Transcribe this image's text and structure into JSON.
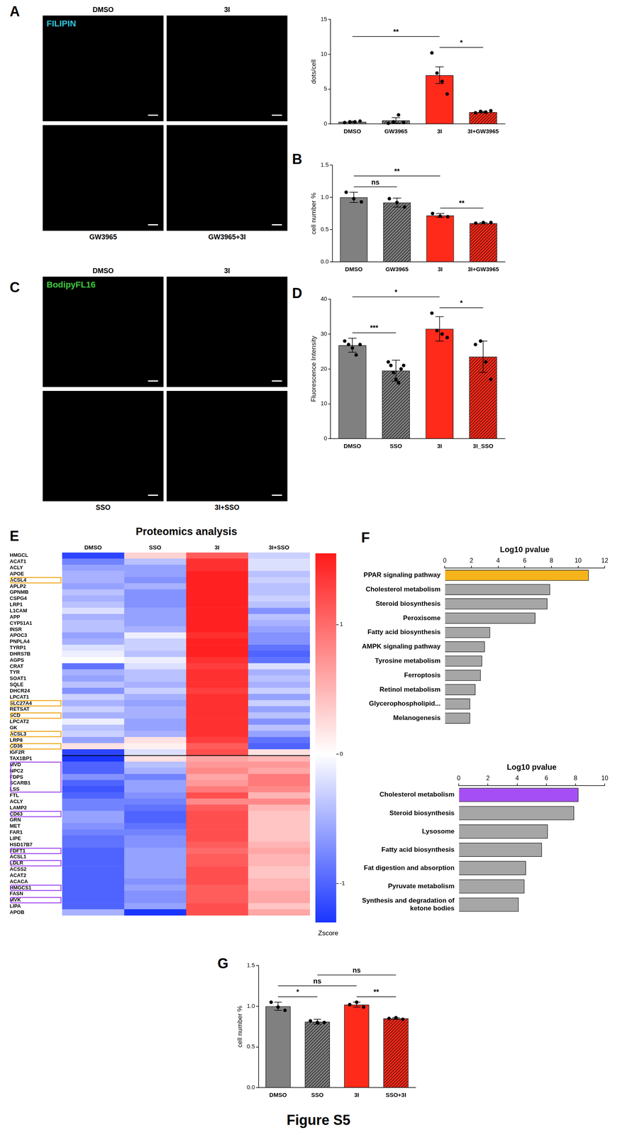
{
  "title": "Figure S5",
  "image_panels": [
    {
      "panel": "A",
      "stain": "FILIPIN",
      "color": "#2fc4dc",
      "labels_top": [
        "DMSO",
        "3I"
      ],
      "labels_bottom": [
        "GW3965",
        "GW3965+3I"
      ]
    },
    {
      "panel": "C",
      "stain": "BodipyFL16",
      "color": "#3cc83c",
      "labels_top": [
        "DMSO",
        "3I"
      ],
      "labels_bottom": [
        "SSO",
        "3I+SSO"
      ]
    }
  ],
  "chart_data": [
    {
      "type": "bar",
      "panel": "A",
      "y_label": "dots/cell",
      "categories": [
        "DMSO",
        "GW3965",
        "3I",
        "3I+GW3965"
      ],
      "values": [
        0.3,
        0.5,
        7.0,
        1.7
      ],
      "errors": [
        0.1,
        0.4,
        1.2,
        0.1
      ],
      "points": [
        [
          0.2,
          0.3,
          0.3,
          0.4
        ],
        [
          0.1,
          0.3,
          1.3,
          0.2
        ],
        [
          10.2,
          7.3,
          6.1,
          4.3
        ],
        [
          1.6,
          1.8,
          1.7,
          1.9
        ]
      ],
      "colors": [
        "#808080",
        "#808080",
        "#ff2a1a",
        "#ff2a1a"
      ],
      "ylim": [
        0,
        15
      ],
      "yticks": [
        0,
        5,
        10,
        15
      ],
      "significance": [
        {
          "from": "DMSO",
          "to": "3I",
          "label": "**"
        },
        {
          "from": "3I",
          "to": "3I+GW3965",
          "label": "*"
        }
      ]
    },
    {
      "type": "bar",
      "panel": "B",
      "y_label": "cell number %",
      "categories": [
        "DMSO",
        "GW3965",
        "3I",
        "3I+GW3965"
      ],
      "values": [
        1.0,
        0.92,
        0.72,
        0.6
      ],
      "errors": [
        0.08,
        0.07,
        0.03,
        0.01
      ],
      "points": [
        [
          1.08,
          0.98,
          0.93
        ],
        [
          0.98,
          0.92,
          0.85
        ],
        [
          0.75,
          0.71,
          0.7
        ],
        [
          0.6,
          0.61,
          0.61
        ]
      ],
      "colors": [
        "#808080",
        "#808080",
        "#ff2a1a",
        "#ff2a1a"
      ],
      "ylim": [
        0,
        1.5
      ],
      "yticks": [
        {
          "value": 0,
          "label": "0.0"
        },
        {
          "value": 0.5,
          "label": "0.5"
        },
        {
          "value": 1,
          "label": "1.0"
        },
        {
          "value": 1.5,
          "label": "1.5"
        }
      ],
      "significance": [
        {
          "from": "DMSO",
          "to": "GW3965",
          "label": "ns"
        },
        {
          "from": "DMSO",
          "to": "3I",
          "label": "**"
        },
        {
          "from": "3I",
          "to": "3I+GW3965",
          "label": "**"
        }
      ]
    },
    {
      "type": "bar",
      "panel": "D",
      "y_label": "Fluorescence Intensity",
      "categories": [
        "DMSO",
        "SSO",
        "3I",
        "3I_SSO"
      ],
      "values": [
        26.8,
        19.5,
        31.5,
        23.5
      ],
      "errors": [
        2.0,
        3.0,
        3.5,
        4.5
      ],
      "points": [
        [
          28,
          27,
          26,
          24,
          27
        ],
        [
          22,
          21,
          19,
          17,
          16,
          20,
          21
        ],
        [
          36,
          31,
          30,
          29
        ],
        [
          27,
          28,
          22,
          17
        ]
      ],
      "colors": [
        "#808080",
        "#808080",
        "#ff2a1a",
        "#ff2a1a"
      ],
      "ylim": [
        0,
        40
      ],
      "yticks": [
        0,
        10,
        20,
        30,
        40
      ],
      "significance": [
        {
          "from": "DMSO",
          "to": "SSO",
          "label": "***"
        },
        {
          "from": "DMSO",
          "to": "3I",
          "label": "*"
        },
        {
          "from": "3I",
          "to": "3I_SSO",
          "label": "*"
        }
      ]
    },
    {
      "type": "heatmap",
      "panel": "E",
      "title": "Proteomics analysis",
      "columns": [
        "DMSO",
        "SSO",
        "3I",
        "3I+SSO"
      ],
      "groups": [
        {
          "rows": [
            {
              "label": "HMGCL",
              "values": [
                -1.2,
                0.3,
                1.1,
                -0.3
              ]
            },
            {
              "label": "ACAT1",
              "values": [
                -0.8,
                -0.4,
                1.4,
                -0.2
              ]
            },
            {
              "label": "ACLY",
              "values": [
                -0.6,
                -0.6,
                1.4,
                -0.2
              ]
            },
            {
              "label": "APOE",
              "values": [
                -0.5,
                -0.6,
                1.5,
                -0.4
              ]
            },
            {
              "label": "ACSL4",
              "values": [
                -0.5,
                -0.7,
                1.5,
                -0.3
              ],
              "color": "#eeaa22"
            },
            {
              "label": "APLP2",
              "values": [
                -0.6,
                -0.5,
                1.5,
                -0.4
              ]
            },
            {
              "label": "GPNMB",
              "values": [
                -0.4,
                -0.7,
                1.5,
                -0.4
              ]
            },
            {
              "label": "CSPG4",
              "values": [
                -0.5,
                -0.7,
                1.5,
                -0.3
              ]
            },
            {
              "label": "LRP1",
              "values": [
                -0.4,
                -0.7,
                1.5,
                -0.4
              ]
            },
            {
              "label": "L1CAM",
              "values": [
                -0.2,
                -0.6,
                1.5,
                -0.7
              ]
            },
            {
              "label": "APP",
              "values": [
                -0.5,
                -0.6,
                1.5,
                -0.4
              ]
            },
            {
              "label": "CYP51A1",
              "values": [
                -0.4,
                -0.6,
                1.5,
                -0.5
              ]
            },
            {
              "label": "INSR",
              "values": [
                -0.4,
                -0.5,
                1.5,
                -0.6
              ]
            },
            {
              "label": "APOC3",
              "values": [
                -0.6,
                -0.1,
                1.4,
                -0.7
              ]
            },
            {
              "label": "PNPLA4",
              "values": [
                -0.5,
                -0.3,
                1.5,
                -0.7
              ]
            },
            {
              "label": "TYRP1",
              "values": [
                -0.2,
                -0.3,
                1.5,
                -0.9
              ]
            },
            {
              "label": "DHRS7B",
              "values": [
                -0.1,
                -0.4,
                1.5,
                -1.0
              ]
            },
            {
              "label": "AGPS",
              "values": [
                0.0,
                -0.1,
                1.4,
                -0.9
              ]
            },
            {
              "label": "CRAT",
              "values": [
                -0.9,
                -0.2,
                1.3,
                -0.2
              ]
            },
            {
              "label": "TYR",
              "values": [
                -0.5,
                -0.4,
                1.4,
                -0.5
              ]
            },
            {
              "label": "SOAT1",
              "values": [
                -0.6,
                -0.4,
                1.4,
                -0.4
              ]
            },
            {
              "label": "SQLE",
              "values": [
                -0.4,
                -0.5,
                1.4,
                -0.5
              ]
            },
            {
              "label": "DHCR24",
              "values": [
                -0.7,
                -0.3,
                1.3,
                -0.3
              ]
            },
            {
              "label": "LPCAT1",
              "values": [
                -0.3,
                -0.5,
                1.4,
                -0.6
              ]
            },
            {
              "label": "SLC27A4",
              "values": [
                -0.5,
                -0.6,
                1.4,
                -0.3
              ],
              "color": "#eeaa22"
            },
            {
              "label": "RETSAT",
              "values": [
                -0.3,
                -0.5,
                1.4,
                -0.6
              ]
            },
            {
              "label": "SCD",
              "values": [
                -0.5,
                -0.5,
                1.4,
                -0.4
              ],
              "color": "#eeaa22"
            },
            {
              "label": "LPCAT2",
              "values": [
                -0.1,
                -0.6,
                1.4,
                -0.7
              ]
            },
            {
              "label": "GK",
              "values": [
                -0.4,
                -0.6,
                1.4,
                -0.4
              ]
            },
            {
              "label": "ACSL3",
              "values": [
                -0.3,
                -0.5,
                1.4,
                -0.6
              ],
              "color": "#eeaa22"
            },
            {
              "label": "LRP8",
              "values": [
                -0.6,
                0.2,
                1.3,
                -0.9
              ]
            },
            {
              "label": "CD36",
              "values": [
                0.2,
                0.1,
                1.1,
                -1.0
              ],
              "color": "#eeaa22"
            },
            {
              "label": "IGF2R",
              "values": [
                -1.2,
                -0.2,
                1.2,
                0.2
              ]
            }
          ]
        },
        {
          "rows": [
            {
              "label": "TAX1BP1",
              "values": [
                -1.3,
                0.2,
                0.6,
                0.5
              ]
            },
            {
              "label": "MVD",
              "values": [
                -1.0,
                -0.4,
                0.7,
                0.7
              ],
              "color": "#a24ff0"
            },
            {
              "label": "NPC2",
              "values": [
                -1.0,
                -0.5,
                0.8,
                0.6
              ],
              "color": "#a24ff0"
            },
            {
              "label": "FDPS",
              "values": [
                -0.7,
                -0.8,
                0.6,
                0.9
              ],
              "color": "#a24ff0"
            },
            {
              "label": "SCARB1",
              "values": [
                -1.0,
                -0.6,
                0.7,
                0.9
              ],
              "color": "#a24ff0"
            },
            {
              "label": "LSS",
              "values": [
                -1.1,
                -0.6,
                0.9,
                0.8
              ],
              "color": "#a24ff0"
            },
            {
              "label": "FTL",
              "values": [
                -1.0,
                -0.7,
                1.2,
                0.5
              ]
            },
            {
              "label": "ACLY",
              "values": [
                -0.8,
                -0.8,
                0.8,
                0.8
              ]
            },
            {
              "label": "LAMP2",
              "values": [
                -0.8,
                -0.9,
                1.1,
                0.5
              ]
            },
            {
              "label": "CD63",
              "values": [
                -0.6,
                -1.0,
                1.2,
                0.4
              ],
              "color": "#a24ff0"
            },
            {
              "label": "GRN",
              "values": [
                -0.6,
                -1.0,
                1.2,
                0.4
              ]
            },
            {
              "label": "MET",
              "values": [
                -0.7,
                -0.9,
                1.2,
                0.4
              ]
            },
            {
              "label": "FAR1",
              "values": [
                -0.8,
                -0.8,
                1.2,
                0.4
              ]
            },
            {
              "label": "LIPE",
              "values": [
                -0.9,
                -0.7,
                1.2,
                0.4
              ]
            },
            {
              "label": "HSD17B7",
              "values": [
                -0.9,
                -0.7,
                1.1,
                0.5
              ]
            },
            {
              "label": "FDFT1",
              "values": [
                -1.0,
                -0.6,
                1.0,
                0.6
              ],
              "color": "#a24ff0"
            },
            {
              "label": "ACSL1",
              "values": [
                -1.0,
                -0.6,
                1.1,
                0.5
              ]
            },
            {
              "label": "LDLR",
              "values": [
                -1.0,
                -0.6,
                1.1,
                0.5
              ],
              "color": "#a24ff0"
            },
            {
              "label": "ACSS2",
              "values": [
                -1.0,
                -0.6,
                1.2,
                0.4
              ]
            },
            {
              "label": "ACAT2",
              "values": [
                -1.0,
                -0.6,
                1.2,
                0.4
              ]
            },
            {
              "label": "ACACA",
              "values": [
                -1.0,
                -0.7,
                1.2,
                0.5
              ]
            },
            {
              "label": "HMGCS1",
              "values": [
                -1.0,
                -0.6,
                1.1,
                0.5
              ],
              "color": "#a24ff0"
            },
            {
              "label": "FASN",
              "values": [
                -1.0,
                -0.7,
                1.1,
                0.6
              ]
            },
            {
              "label": "MVK",
              "values": [
                -1.0,
                -0.7,
                1.1,
                0.6
              ],
              "color": "#a24ff0"
            },
            {
              "label": "LIPA",
              "values": [
                -1.0,
                -0.6,
                1.2,
                0.4
              ]
            },
            {
              "label": "APOB",
              "values": [
                -0.5,
                -1.3,
                1.2,
                0.6
              ]
            }
          ]
        }
      ],
      "colorbar": {
        "label": "Zscore",
        "range": [
          -1.3,
          1.55
        ],
        "ticks": [
          -1,
          0,
          1
        ],
        "colors": [
          "#1a35ff",
          "#ffffff",
          "#ff1a1a"
        ]
      }
    },
    {
      "type": "bar",
      "panel": "F",
      "orientation": "horizontal",
      "x_label": "Log10 pvalue",
      "categories": [
        "PPAR signaling pathway",
        "Cholesterol metabolism",
        "Steroid biosynthesis",
        "Peroxisome",
        "Fatty acid biosynthesis",
        "AMPK signaling pathway",
        "Tyrosine metabolism",
        "Ferroptosis",
        "Retinol metabolism",
        "Glycerophospholipid...",
        "Melanogenesis"
      ],
      "values": [
        10.8,
        7.9,
        7.7,
        6.8,
        3.4,
        3.0,
        2.8,
        2.7,
        2.3,
        1.9,
        1.9
      ],
      "colors": [
        "#f5b31c",
        "#a6a6a6",
        "#a6a6a6",
        "#a6a6a6",
        "#a6a6a6",
        "#a6a6a6",
        "#a6a6a6",
        "#a6a6a6",
        "#a6a6a6",
        "#a6a6a6",
        "#a6a6a6"
      ],
      "xlim": [
        0,
        12
      ],
      "xticks": [
        0,
        2,
        4,
        6,
        8,
        10,
        12
      ]
    },
    {
      "type": "bar",
      "panel": "F",
      "orientation": "horizontal",
      "x_label": "Log10 pvalue",
      "categories": [
        "Cholesterol metabolism",
        "Steroid biosynthesis",
        "Lysosome",
        "Fatty acid biosynthesis",
        "Fat digestion and absorption",
        "Pyruvate metabolism",
        "Synthesis and degradation of ketone bodies"
      ],
      "values": [
        8.2,
        7.9,
        6.1,
        5.7,
        4.6,
        4.5,
        4.1
      ],
      "colors": [
        "#a54ef5",
        "#a6a6a6",
        "#a6a6a6",
        "#a6a6a6",
        "#a6a6a6",
        "#a6a6a6",
        "#a6a6a6"
      ],
      "xlim": [
        0,
        10
      ],
      "xticks": [
        0,
        2,
        4,
        6,
        8,
        10
      ]
    },
    {
      "type": "bar",
      "panel": "G",
      "y_label": "cell number %",
      "categories": [
        "DMSO",
        "SSO",
        "3I",
        "SSO+3I"
      ],
      "values": [
        1.0,
        0.81,
        1.02,
        0.85
      ],
      "errors": [
        0.05,
        0.03,
        0.03,
        0.01
      ],
      "points": [
        [
          1.05,
          0.99,
          0.95
        ],
        [
          0.82,
          0.8,
          0.8
        ],
        [
          1.02,
          1.05,
          0.99
        ],
        [
          0.85,
          0.86,
          0.84
        ]
      ],
      "colors": [
        "#808080",
        "#808080",
        "#ff2a1a",
        "#ff2a1a"
      ],
      "ylim": [
        0,
        1.5
      ],
      "yticks": [
        {
          "value": 0,
          "label": "0.0"
        },
        {
          "value": 0.5,
          "label": "0.5"
        },
        {
          "value": 1,
          "label": "1.0"
        },
        {
          "value": 1.5,
          "label": "1.5"
        }
      ],
      "significance": [
        {
          "from": "DMSO",
          "to": "3I",
          "label": "ns"
        },
        {
          "from": "DMSO",
          "to": "SSO",
          "label": "*"
        },
        {
          "from": "SSO",
          "to": "SSO+3I",
          "label": "ns"
        },
        {
          "from": "3I",
          "to": "SSO+3I",
          "label": "**"
        }
      ]
    }
  ]
}
